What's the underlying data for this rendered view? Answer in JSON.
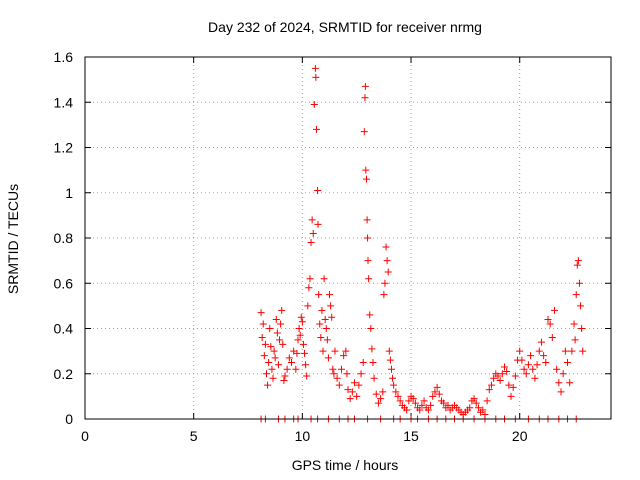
{
  "chart_data": {
    "type": "scatter",
    "title": "Day 232 of 2024, SRMTID for receiver nrmg",
    "xlabel": "GPS time / hours",
    "ylabel": "SRMTID / TECUs",
    "xlim": [
      0,
      24.2
    ],
    "ylim": [
      0,
      1.6
    ],
    "x_ticks": [
      0,
      5,
      10,
      15,
      20
    ],
    "x_tick_labels": [
      "0",
      "5",
      "10",
      "15",
      "20"
    ],
    "y_ticks": [
      0,
      0.2,
      0.4,
      0.6,
      0.8,
      1,
      1.2,
      1.4,
      1.6
    ],
    "y_tick_labels": [
      "0",
      "0.2",
      "0.4",
      "0.6",
      "0.8",
      "1",
      "1.2",
      "1.4",
      "1.6"
    ],
    "grid": true,
    "marker": "plus",
    "series": [
      {
        "name": "SRMTID",
        "color": "#ff0000",
        "points": [
          [
            8.1,
            0.47
          ],
          [
            8.15,
            0.36
          ],
          [
            8.2,
            0.42
          ],
          [
            8.25,
            0.28
          ],
          [
            8.3,
            0.33
          ],
          [
            8.35,
            0.2
          ],
          [
            8.4,
            0.15
          ],
          [
            8.45,
            0.25
          ],
          [
            8.5,
            0.4
          ],
          [
            8.55,
            0.32
          ],
          [
            8.6,
            0.22
          ],
          [
            8.65,
            0.18
          ],
          [
            8.7,
            0.3
          ],
          [
            8.75,
            0.27
          ],
          [
            8.8,
            0.44
          ],
          [
            8.85,
            0.38
          ],
          [
            8.9,
            0.24
          ],
          [
            8.95,
            0.35
          ],
          [
            9.0,
            0.42
          ],
          [
            9.05,
            0.48
          ],
          [
            9.1,
            0.33
          ],
          [
            9.15,
            0.17
          ],
          [
            9.2,
            0.19
          ],
          [
            9.3,
            0.22
          ],
          [
            9.4,
            0.27
          ],
          [
            9.5,
            0.25
          ],
          [
            9.6,
            0.3
          ],
          [
            9.7,
            0.22
          ],
          [
            9.75,
            0.29
          ],
          [
            9.8,
            0.35
          ],
          [
            9.85,
            0.4
          ],
          [
            9.9,
            0.37
          ],
          [
            9.95,
            0.45
          ],
          [
            10.0,
            0.43
          ],
          [
            10.05,
            0.33
          ],
          [
            10.1,
            0.29
          ],
          [
            10.15,
            0.24
          ],
          [
            10.2,
            0.19
          ],
          [
            10.25,
            0.5
          ],
          [
            10.3,
            0.58
          ],
          [
            10.35,
            0.62
          ],
          [
            10.4,
            0.78
          ],
          [
            10.45,
            0.88
          ],
          [
            10.5,
            0.82
          ],
          [
            10.55,
            1.39
          ],
          [
            10.6,
            1.55
          ],
          [
            10.62,
            1.51
          ],
          [
            10.65,
            1.28
          ],
          [
            10.7,
            1.01
          ],
          [
            10.72,
            0.86
          ],
          [
            10.75,
            0.55
          ],
          [
            10.8,
            0.42
          ],
          [
            10.85,
            0.36
          ],
          [
            10.9,
            0.48
          ],
          [
            10.95,
            0.3
          ],
          [
            11.0,
            0.62
          ],
          [
            11.05,
            0.44
          ],
          [
            11.1,
            0.4
          ],
          [
            11.15,
            0.35
          ],
          [
            11.2,
            0.27
          ],
          [
            11.25,
            0.55
          ],
          [
            11.3,
            0.5
          ],
          [
            11.35,
            0.45
          ],
          [
            11.4,
            0.22
          ],
          [
            11.45,
            0.2
          ],
          [
            11.5,
            0.3
          ],
          [
            11.6,
            0.18
          ],
          [
            11.7,
            0.15
          ],
          [
            11.8,
            0.22
          ],
          [
            11.9,
            0.28
          ],
          [
            12.0,
            0.3
          ],
          [
            12.05,
            0.2
          ],
          [
            12.1,
            0.13
          ],
          [
            12.2,
            0.09
          ],
          [
            12.3,
            0.12
          ],
          [
            12.4,
            0.16
          ],
          [
            12.5,
            0.1
          ],
          [
            12.6,
            0.15
          ],
          [
            12.7,
            0.2
          ],
          [
            12.8,
            0.25
          ],
          [
            12.85,
            1.27
          ],
          [
            12.88,
            1.42
          ],
          [
            12.9,
            1.47
          ],
          [
            12.92,
            1.1
          ],
          [
            12.95,
            1.06
          ],
          [
            12.98,
            0.88
          ],
          [
            13.0,
            0.8
          ],
          [
            13.02,
            0.7
          ],
          [
            13.05,
            0.62
          ],
          [
            13.1,
            0.46
          ],
          [
            13.15,
            0.4
          ],
          [
            13.2,
            0.31
          ],
          [
            13.25,
            0.25
          ],
          [
            13.3,
            0.18
          ],
          [
            13.4,
            0.11
          ],
          [
            13.5,
            0.07
          ],
          [
            13.6,
            0.09
          ],
          [
            13.7,
            0.12
          ],
          [
            13.75,
            0.55
          ],
          [
            13.8,
            0.6
          ],
          [
            13.85,
            0.76
          ],
          [
            13.9,
            0.7
          ],
          [
            13.95,
            0.65
          ],
          [
            14.0,
            0.3
          ],
          [
            14.05,
            0.26
          ],
          [
            14.1,
            0.22
          ],
          [
            14.15,
            0.18
          ],
          [
            14.2,
            0.15
          ],
          [
            14.3,
            0.12
          ],
          [
            14.4,
            0.1
          ],
          [
            14.5,
            0.08
          ],
          [
            14.6,
            0.06
          ],
          [
            14.7,
            0.05
          ],
          [
            14.8,
            0.04
          ],
          [
            14.9,
            0.08
          ],
          [
            15.0,
            0.1
          ],
          [
            15.1,
            0.09
          ],
          [
            15.2,
            0.07
          ],
          [
            15.3,
            0.05
          ],
          [
            15.4,
            0.04
          ],
          [
            15.5,
            0.06
          ],
          [
            15.6,
            0.08
          ],
          [
            15.7,
            0.05
          ],
          [
            15.8,
            0.04
          ],
          [
            15.9,
            0.06
          ],
          [
            16.0,
            0.1
          ],
          [
            16.1,
            0.12
          ],
          [
            16.2,
            0.14
          ],
          [
            16.3,
            0.11
          ],
          [
            16.4,
            0.08
          ],
          [
            16.5,
            0.07
          ],
          [
            16.6,
            0.05
          ],
          [
            16.7,
            0.06
          ],
          [
            16.8,
            0.04
          ],
          [
            16.9,
            0.05
          ],
          [
            17.0,
            0.06
          ],
          [
            17.1,
            0.05
          ],
          [
            17.2,
            0.04
          ],
          [
            17.3,
            0.03
          ],
          [
            17.4,
            0.02
          ],
          [
            17.5,
            0.03
          ],
          [
            17.6,
            0.04
          ],
          [
            17.7,
            0.05
          ],
          [
            17.8,
            0.08
          ],
          [
            17.9,
            0.09
          ],
          [
            18.0,
            0.07
          ],
          [
            18.1,
            0.05
          ],
          [
            18.2,
            0.03
          ],
          [
            18.3,
            0.04
          ],
          [
            18.4,
            0.02
          ],
          [
            18.5,
            0.08
          ],
          [
            18.6,
            0.13
          ],
          [
            18.7,
            0.15
          ],
          [
            18.8,
            0.18
          ],
          [
            18.9,
            0.2
          ],
          [
            19.0,
            0.19
          ],
          [
            19.1,
            0.17
          ],
          [
            19.2,
            0.2
          ],
          [
            19.3,
            0.23
          ],
          [
            19.4,
            0.21
          ],
          [
            19.5,
            0.15
          ],
          [
            19.6,
            0.1
          ],
          [
            19.7,
            0.14
          ],
          [
            19.8,
            0.19
          ],
          [
            19.9,
            0.26
          ],
          [
            20.0,
            0.3
          ],
          [
            20.1,
            0.26
          ],
          [
            20.2,
            0.22
          ],
          [
            20.3,
            0.2
          ],
          [
            20.4,
            0.24
          ],
          [
            20.5,
            0.28
          ],
          [
            20.6,
            0.22
          ],
          [
            20.7,
            0.18
          ],
          [
            20.8,
            0.24
          ],
          [
            20.9,
            0.3
          ],
          [
            21.0,
            0.34
          ],
          [
            21.1,
            0.28
          ],
          [
            21.2,
            0.25
          ],
          [
            21.3,
            0.44
          ],
          [
            21.4,
            0.42
          ],
          [
            21.5,
            0.36
          ],
          [
            21.6,
            0.48
          ],
          [
            21.7,
            0.22
          ],
          [
            21.8,
            0.16
          ],
          [
            21.9,
            0.12
          ],
          [
            22.0,
            0.2
          ],
          [
            22.1,
            0.3
          ],
          [
            22.2,
            0.25
          ],
          [
            22.3,
            0.16
          ],
          [
            22.4,
            0.3
          ],
          [
            22.5,
            0.42
          ],
          [
            22.55,
            0.35
          ],
          [
            22.6,
            0.55
          ],
          [
            22.65,
            0.68
          ],
          [
            22.7,
            0.7
          ],
          [
            22.75,
            0.6
          ],
          [
            22.8,
            0.5
          ],
          [
            22.85,
            0.4
          ],
          [
            22.9,
            0.3
          ],
          [
            8.1,
            0.0
          ],
          [
            8.3,
            0.0
          ],
          [
            8.9,
            0.0
          ],
          [
            9.2,
            0.0
          ],
          [
            9.6,
            0.0
          ],
          [
            9.8,
            0.0
          ],
          [
            10.4,
            0.0
          ],
          [
            10.7,
            0.0
          ],
          [
            11.2,
            0.0
          ],
          [
            11.7,
            0.0
          ],
          [
            12.1,
            0.0
          ],
          [
            12.4,
            0.0
          ],
          [
            13.0,
            0.0
          ],
          [
            13.6,
            0.0
          ],
          [
            14.2,
            0.0
          ],
          [
            14.5,
            0.0
          ],
          [
            15.0,
            0.0
          ],
          [
            15.3,
            0.0
          ],
          [
            15.8,
            0.0
          ],
          [
            16.2,
            0.0
          ],
          [
            16.6,
            0.0
          ],
          [
            17.0,
            0.0
          ],
          [
            17.4,
            0.0
          ],
          [
            17.9,
            0.0
          ],
          [
            18.4,
            0.0
          ],
          [
            18.9,
            0.0
          ],
          [
            19.3,
            0.0
          ],
          [
            19.8,
            0.0
          ],
          [
            20.4,
            0.0
          ],
          [
            20.9,
            0.0
          ],
          [
            21.3,
            0.0
          ],
          [
            21.8,
            0.0
          ],
          [
            22.2,
            0.0
          ],
          [
            22.6,
            0.0
          ]
        ]
      }
    ]
  }
}
